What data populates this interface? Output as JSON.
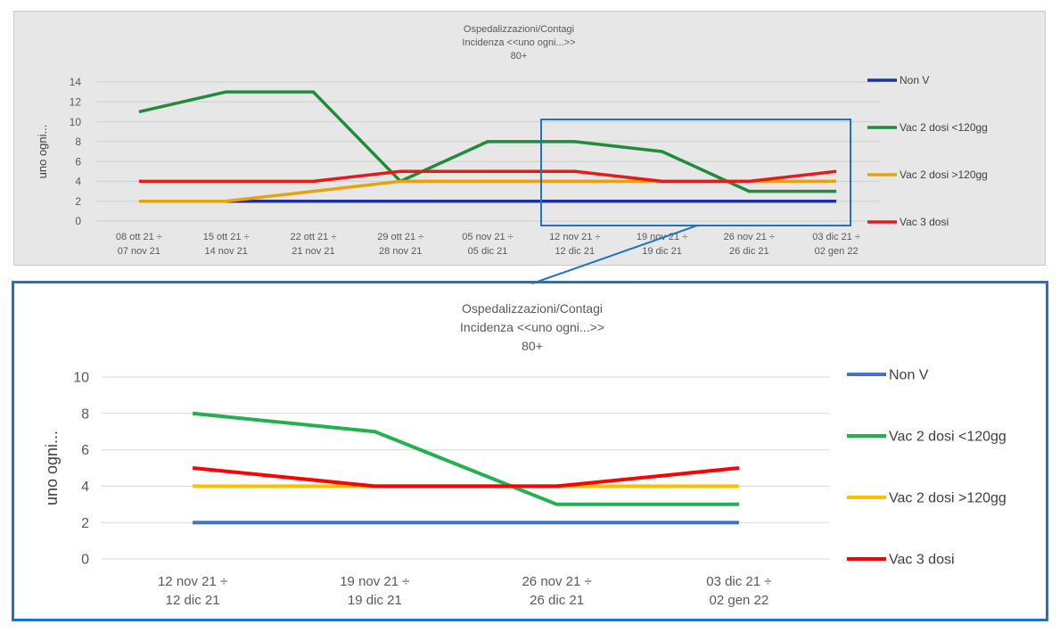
{
  "chart_data": [
    {
      "type": "line",
      "title": [
        "Ospedalizzazioni/Contagi",
        "Incidenza <<uno ogni...>>",
        "80+"
      ],
      "ylabel": "uno ogni...",
      "ylim": [
        0,
        14
      ],
      "yticks": [
        0,
        2,
        4,
        6,
        8,
        10,
        12,
        14
      ],
      "grid": true,
      "legend_position": "right",
      "categories": [
        [
          "08 ott 21 ÷",
          "07 nov 21"
        ],
        [
          "15 ott 21 ÷",
          "14 nov 21"
        ],
        [
          "22 ott 21 ÷",
          "21 nov 21"
        ],
        [
          "29 ott 21 ÷",
          "28 nov 21"
        ],
        [
          "05 nov 21 ÷",
          "05 dic 21"
        ],
        [
          "12 nov 21 ÷",
          "12 dic 21"
        ],
        [
          "19 nov 21 ÷",
          "19 dic 21"
        ],
        [
          "26 nov 21 ÷",
          "26 dic 21"
        ],
        [
          "03 dic 21 ÷",
          "02 gen 22"
        ]
      ],
      "series": [
        {
          "name": "Non V",
          "color": "#1f2fa5",
          "values": [
            null,
            2,
            2,
            2,
            2,
            2,
            2,
            2,
            2
          ]
        },
        {
          "name": "Vac 2 dosi <120gg",
          "color": "#1e8c3a",
          "values": [
            11,
            13,
            13,
            4,
            8,
            8,
            7,
            3,
            3
          ]
        },
        {
          "name": "Vac 2 dosi >120gg",
          "color": "#e8a20b",
          "values": [
            2,
            2,
            3,
            4,
            4,
            4,
            4,
            4,
            4
          ]
        },
        {
          "name": "Vac 3 dosi",
          "color": "#e31b1b",
          "values": [
            4,
            4,
            4,
            5,
            5,
            5,
            4,
            4,
            5
          ]
        }
      ]
    },
    {
      "type": "line",
      "title": [
        "Ospedalizzazioni/Contagi",
        "Incidenza <<uno ogni...>>",
        "80+"
      ],
      "ylabel": "uno ogni...",
      "ylim": [
        0,
        10
      ],
      "yticks": [
        0,
        2,
        4,
        6,
        8,
        10
      ],
      "grid": true,
      "legend_position": "right",
      "categories": [
        [
          "12 nov 21 ÷",
          "12 dic 21"
        ],
        [
          "19 nov 21 ÷",
          "19 dic 21"
        ],
        [
          "26 nov 21 ÷",
          "26 dic 21"
        ],
        [
          "03 dic 21 ÷",
          "02 gen 22"
        ]
      ],
      "series": [
        {
          "name": "Non V",
          "color": "#4472c4",
          "values": [
            2,
            2,
            2,
            2
          ]
        },
        {
          "name": "Vac 2 dosi <120gg",
          "color": "#22b14c",
          "values": [
            8,
            7,
            3,
            3
          ]
        },
        {
          "name": "Vac 2 dosi >120gg",
          "color": "#ffc000",
          "values": [
            4,
            4,
            4,
            4
          ]
        },
        {
          "name": "Vac 3 dosi",
          "color": "#ff0000",
          "values": [
            5,
            4,
            4,
            5
          ]
        }
      ]
    }
  ]
}
